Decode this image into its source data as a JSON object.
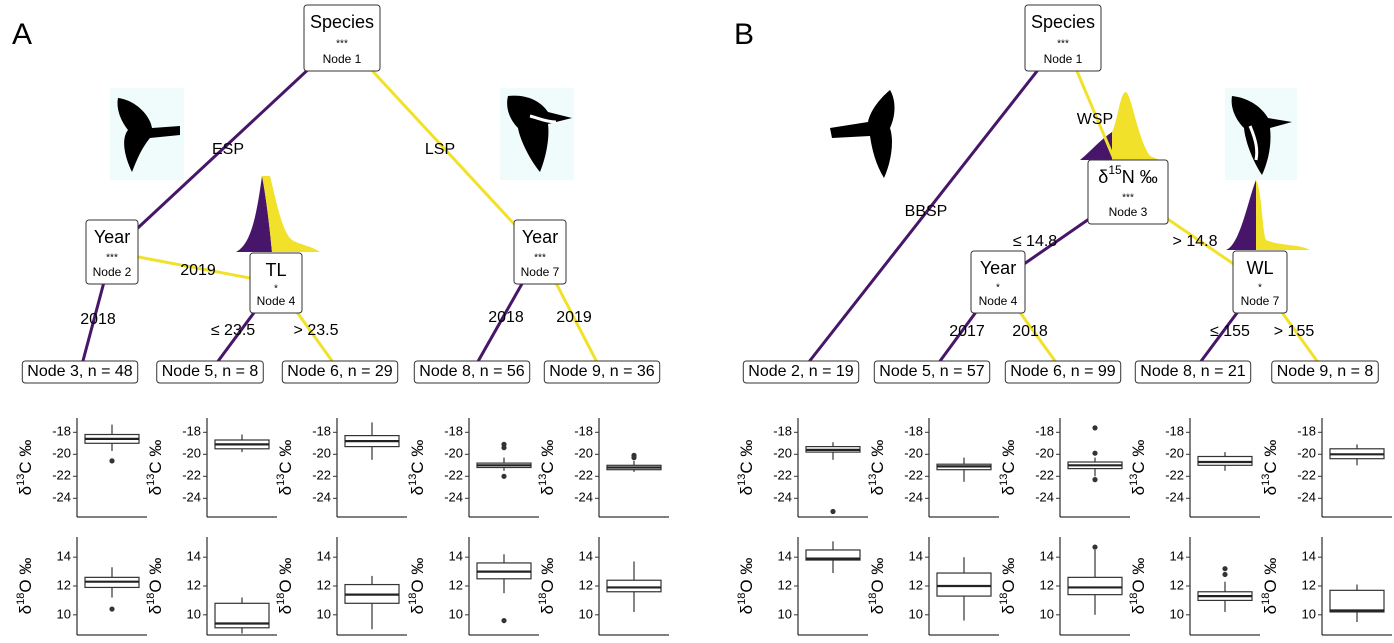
{
  "axes": {
    "d13C": {
      "label_parts": [
        "δ",
        "13",
        "C ‰"
      ],
      "ylim": [
        -25.7,
        -16.7
      ],
      "yticks": [
        -18,
        -20,
        -22,
        -24
      ]
    },
    "d18O": {
      "label_parts": [
        "δ",
        "18",
        "O ‰"
      ],
      "ylim": [
        8.6,
        15.4
      ],
      "yticks": [
        14,
        12,
        10
      ]
    }
  },
  "panels": [
    {
      "label": "A",
      "nodes": [
        {
          "label": "Species",
          "stars": "***",
          "node": "Node  1"
        },
        {
          "label": "Year",
          "stars": "***",
          "node": "Node  2"
        },
        {
          "label": "TL",
          "stars": "*",
          "node": "Node  4"
        },
        {
          "label": "Year",
          "stars": "***",
          "node": "Node  7"
        }
      ],
      "edges": [
        {
          "label": "ESP",
          "color": "#47166a"
        },
        {
          "label": "LSP",
          "color": "#f2e12b"
        },
        {
          "label": "2018",
          "color": "#47166a"
        },
        {
          "label": "2019",
          "color": "#f2e12b"
        },
        {
          "label": "≤ 23.5",
          "color": "#47166a"
        },
        {
          "label": "> 23.5",
          "color": "#f2e12b"
        },
        {
          "label": "2018",
          "color": "#47166a"
        },
        {
          "label": "2019",
          "color": "#f2e12b"
        }
      ],
      "terminals": [
        {
          "label": "Node 3, n = 48",
          "d13C": {
            "low": -19.7,
            "q1": -19,
            "median": -18.6,
            "q3": -18.2,
            "high": -17.3,
            "outliers": [
              -20.6
            ]
          },
          "d18O": {
            "low": 11.2,
            "q1": 11.9,
            "median": 12.3,
            "q3": 12.6,
            "high": 13.3,
            "outliers": [
              10.4
            ]
          }
        },
        {
          "label": "Node 5, n = 8",
          "d13C": {
            "low": -19.8,
            "q1": -19.5,
            "median": -19.1,
            "q3": -18.7,
            "high": -18.2,
            "outliers": []
          },
          "d18O": {
            "low": 8.7,
            "q1": 9.1,
            "median": 9.4,
            "q3": 10.8,
            "high": 11.2,
            "outliers": []
          }
        },
        {
          "label": "Node 6, n = 29",
          "d13C": {
            "low": -20.5,
            "q1": -19.3,
            "median": -18.8,
            "q3": -18.3,
            "high": -17.1,
            "outliers": []
          },
          "d18O": {
            "low": 9.0,
            "q1": 10.8,
            "median": 11.4,
            "q3": 12.1,
            "high": 12.7,
            "outliers": []
          }
        },
        {
          "label": "Node 8, n = 56",
          "d13C": {
            "low": -21.5,
            "q1": -21.2,
            "median": -21,
            "q3": -20.8,
            "high": -20.3,
            "outliers": [
              -19.1,
              -19.4,
              -22
            ]
          },
          "d18O": {
            "low": 11.5,
            "q1": 12.5,
            "median": 13,
            "q3": 13.6,
            "high": 14.2,
            "outliers": [
              9.6
            ]
          }
        },
        {
          "label": "Node 9, n = 36",
          "d13C": {
            "low": -21.6,
            "q1": -21.4,
            "median": -21.2,
            "q3": -21,
            "high": -20.6,
            "outliers": [
              -20.1,
              -20.3
            ]
          },
          "d18O": {
            "low": 10.2,
            "q1": 11.6,
            "median": 11.9,
            "q3": 12.4,
            "high": 13.7,
            "outliers": []
          }
        }
      ]
    },
    {
      "label": "B",
      "nodes": [
        {
          "label": "Species",
          "stars": "***",
          "node": "Node  1"
        },
        {
          "label_parts": [
            "δ",
            "15",
            "N ‰"
          ],
          "stars": "***",
          "node": "Node  3"
        },
        {
          "label": "Year",
          "stars": "*",
          "node": "Node  4"
        },
        {
          "label": "WL",
          "stars": "*",
          "node": "Node  7"
        }
      ],
      "edges": [
        {
          "label": "BBSP",
          "color": "#47166a"
        },
        {
          "label": "WSP",
          "color": "#f2e12b"
        },
        {
          "label": "≤ 14.8",
          "color": "#47166a"
        },
        {
          "label": "> 14.8",
          "color": "#f2e12b"
        },
        {
          "label": "2017",
          "color": "#47166a"
        },
        {
          "label": "2018",
          "color": "#f2e12b"
        },
        {
          "label": "≤ 155",
          "color": "#47166a"
        },
        {
          "label": "> 155",
          "color": "#f2e12b"
        }
      ],
      "terminals": [
        {
          "label": "Node 2, n = 19",
          "d13C": {
            "low": -20.5,
            "q1": -19.8,
            "median": -19.6,
            "q3": -19.3,
            "high": -18.9,
            "outliers": [
              -25.2
            ]
          },
          "d18O": {
            "low": 12.9,
            "q1": 13.8,
            "median": 13.9,
            "q3": 14.5,
            "high": 15.1,
            "outliers": []
          }
        },
        {
          "label": "Node 5, n = 57",
          "d13C": {
            "low": -22.5,
            "q1": -21.4,
            "median": -21.1,
            "q3": -20.9,
            "high": -20.3,
            "outliers": []
          },
          "d18O": {
            "low": 9.6,
            "q1": 11.3,
            "median": 12,
            "q3": 12.9,
            "high": 14,
            "outliers": []
          }
        },
        {
          "label": "Node 6, n = 99",
          "d13C": {
            "low": -22,
            "q1": -21.3,
            "median": -21,
            "q3": -20.7,
            "high": -20.3,
            "outliers": [
              -17.6,
              -19.9,
              -22.3
            ]
          },
          "d18O": {
            "low": 10,
            "q1": 11.4,
            "median": 11.9,
            "q3": 12.6,
            "high": 14.5,
            "outliers": [
              14.7
            ]
          }
        },
        {
          "label": "Node 8, n = 21",
          "d13C": {
            "low": -21.5,
            "q1": -21,
            "median": -20.7,
            "q3": -20.2,
            "high": -19.8,
            "outliers": []
          },
          "d18O": {
            "low": 10.2,
            "q1": 11,
            "median": 11.3,
            "q3": 11.6,
            "high": 12.3,
            "outliers": [
              12.8,
              13.2
            ]
          }
        },
        {
          "label": "Node 9, n = 8",
          "d13C": {
            "low": -21,
            "q1": -20.4,
            "median": -20,
            "q3": -19.5,
            "high": -19.1,
            "outliers": []
          },
          "d18O": {
            "low": 9.5,
            "q1": 10.2,
            "median": 10.3,
            "q3": 11.7,
            "high": 12.1,
            "outliers": []
          }
        }
      ]
    }
  ]
}
